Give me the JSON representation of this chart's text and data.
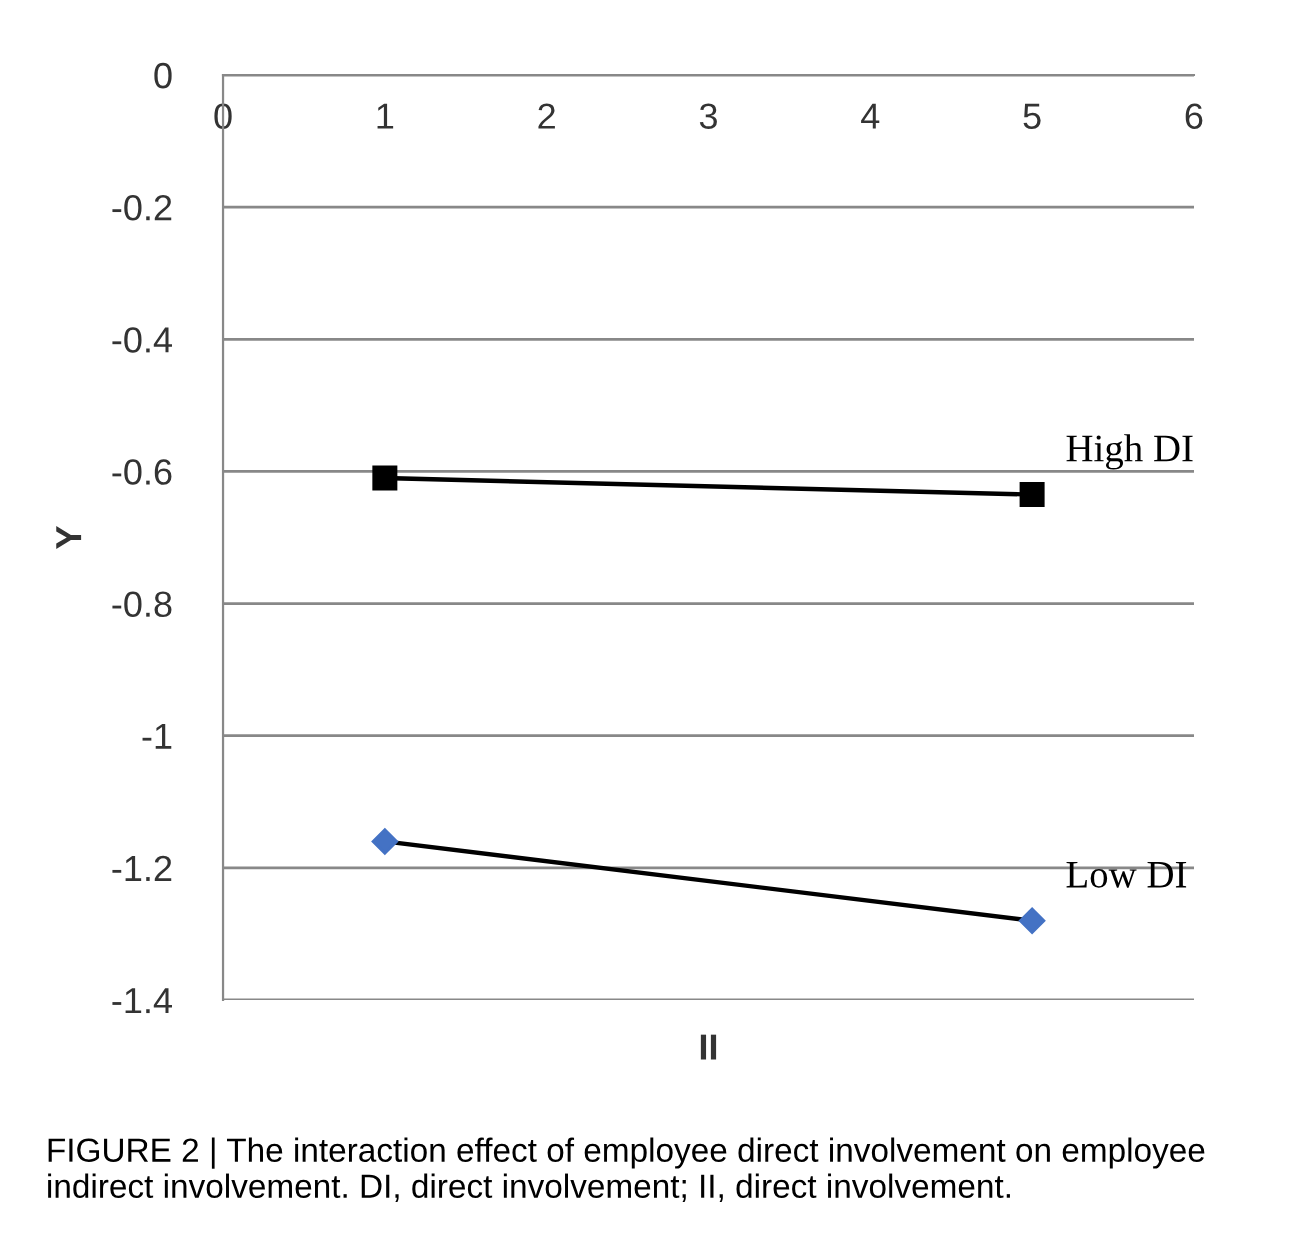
{
  "chart_data": {
    "type": "line",
    "xlabel": "II",
    "ylabel": "Y",
    "x": [
      1,
      5
    ],
    "series": [
      {
        "name": "High DI",
        "color": "#000000",
        "marker": "square",
        "values": [
          -0.61,
          -0.635
        ]
      },
      {
        "name": "Low DI",
        "color": "#4472c4",
        "marker": "diamond",
        "values": [
          -1.16,
          -1.28
        ]
      }
    ],
    "xlim": [
      0,
      6
    ],
    "xticks": [
      0,
      1,
      2,
      3,
      4,
      5,
      6
    ],
    "ylim": [
      -1.4,
      0
    ],
    "yticks": [
      -1.4,
      -1.2,
      -1,
      -0.8,
      -0.6,
      -0.4,
      -0.2,
      0
    ],
    "grid": "y",
    "legend": false,
    "line_style": "solid",
    "annotations": [
      "FIGURE 2 | The interaction effect of employee direct involvement on employee indirect involvement. DI, direct involvement; II, direct involvement."
    ]
  }
}
